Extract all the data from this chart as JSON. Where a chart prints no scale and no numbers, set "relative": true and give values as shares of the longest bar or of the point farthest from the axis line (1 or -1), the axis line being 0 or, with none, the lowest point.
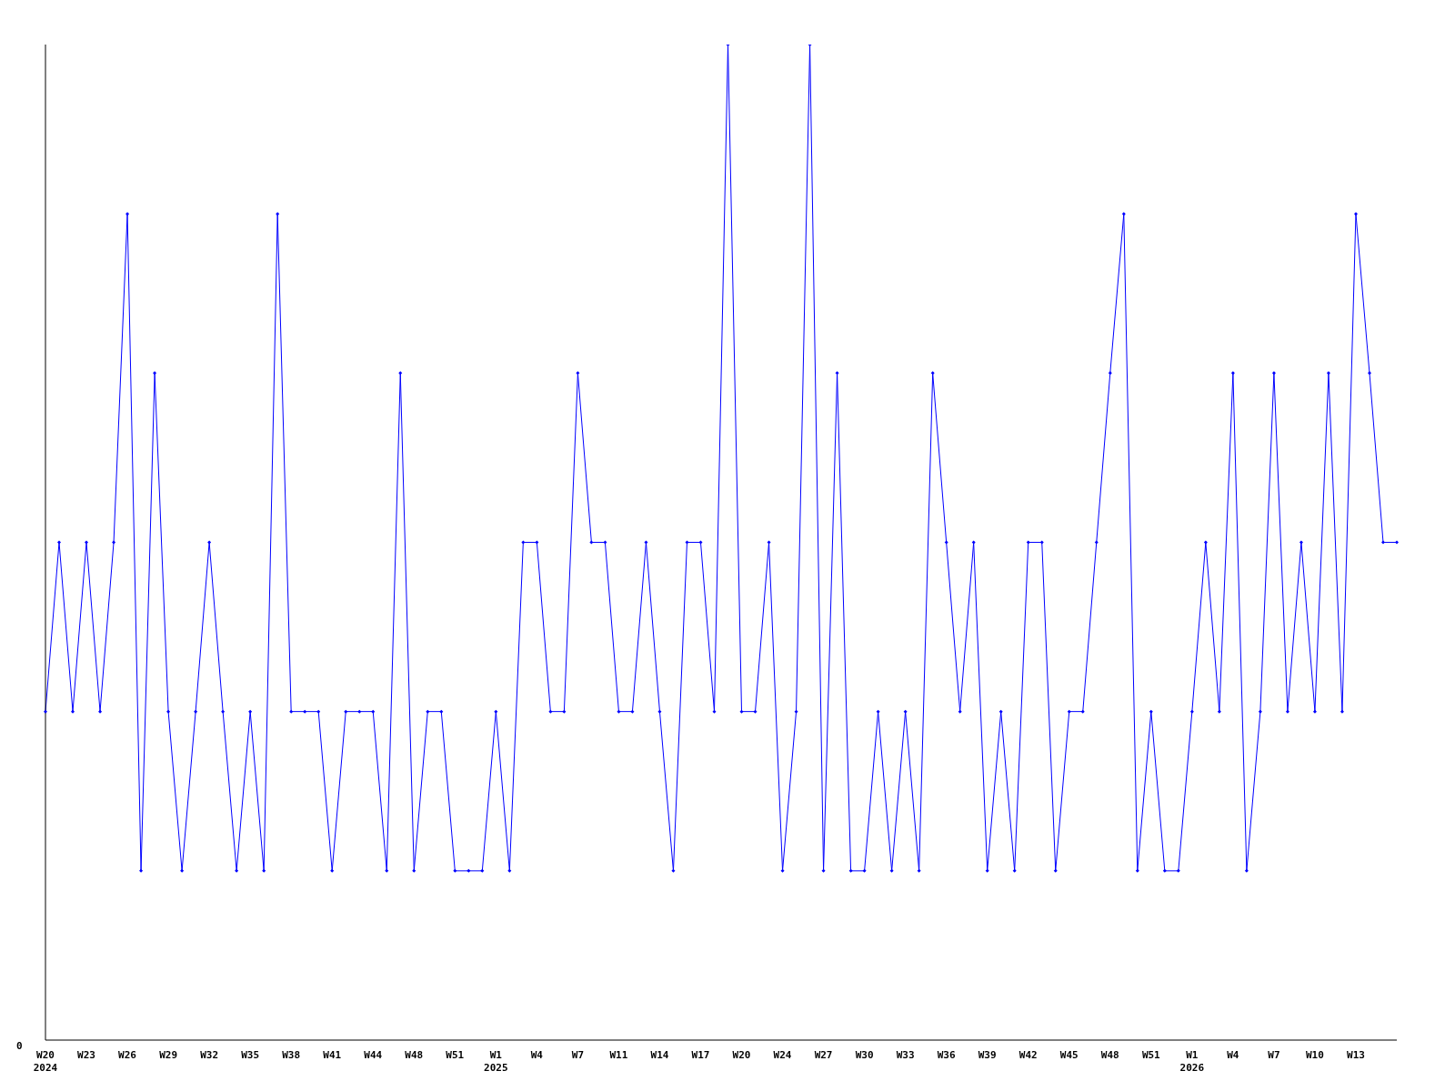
{
  "chart_data": {
    "type": "line",
    "relative": true,
    "color": "#0000ff",
    "marker": "diamond",
    "line_style": "solid",
    "annotations": [
      "0"
    ],
    "categories": [
      "W20\n2024",
      null,
      null,
      "W23",
      null,
      null,
      "W26",
      null,
      null,
      "W29",
      null,
      null,
      "W32",
      null,
      null,
      "W35",
      null,
      null,
      "W38",
      null,
      null,
      "W41",
      null,
      null,
      "W44",
      null,
      null,
      "W48",
      null,
      null,
      "W51",
      null,
      null,
      "W1\n2025",
      null,
      null,
      "W4",
      null,
      null,
      "W7",
      null,
      null,
      "W11",
      null,
      null,
      "W14",
      null,
      null,
      "W17",
      null,
      null,
      "W20",
      null,
      null,
      "W24",
      null,
      null,
      "W27",
      null,
      null,
      "W30",
      null,
      null,
      "W33",
      null,
      null,
      "W36",
      null,
      null,
      "W39",
      null,
      null,
      "W42",
      null,
      null,
      "W45",
      null,
      null,
      "W48",
      null,
      null,
      "W51",
      null,
      null,
      "W1\n2026",
      null,
      null,
      "W4",
      null,
      null,
      "W7",
      null,
      null,
      "W10",
      null,
      null,
      "W13",
      null,
      null,
      null
    ],
    "values": [
      0.33,
      0.5,
      0.33,
      0.5,
      0.33,
      0.5,
      0.83,
      0.17,
      0.67,
      0.33,
      0.17,
      0.33,
      0.5,
      0.33,
      0.17,
      0.33,
      0.17,
      0.83,
      0.33,
      0.33,
      0.33,
      0.17,
      0.33,
      0.33,
      0.33,
      0.17,
      0.67,
      0.17,
      0.33,
      0.33,
      0.17,
      0.17,
      0.17,
      0.33,
      0.17,
      0.5,
      0.5,
      0.33,
      0.33,
      0.67,
      0.5,
      0.5,
      0.33,
      0.33,
      0.5,
      0.33,
      0.17,
      0.5,
      0.5,
      0.33,
      1,
      0.33,
      0.33,
      0.5,
      0.17,
      0.33,
      1,
      0.17,
      0.67,
      0.17,
      0.17,
      0.33,
      0.17,
      0.33,
      0.17,
      0.67,
      0.5,
      0.33,
      0.5,
      0.17,
      0.33,
      0.17,
      0.5,
      0.5,
      0.17,
      0.33,
      0.33,
      0.5,
      0.67,
      0.83,
      0.17,
      0.33,
      0.17,
      0.17,
      0.33,
      0.5,
      0.33,
      0.67,
      0.17,
      0.33,
      0.67,
      0.33,
      0.5,
      0.33,
      0.67,
      0.33,
      0.83,
      0.67,
      0.5,
      0.5
    ]
  }
}
